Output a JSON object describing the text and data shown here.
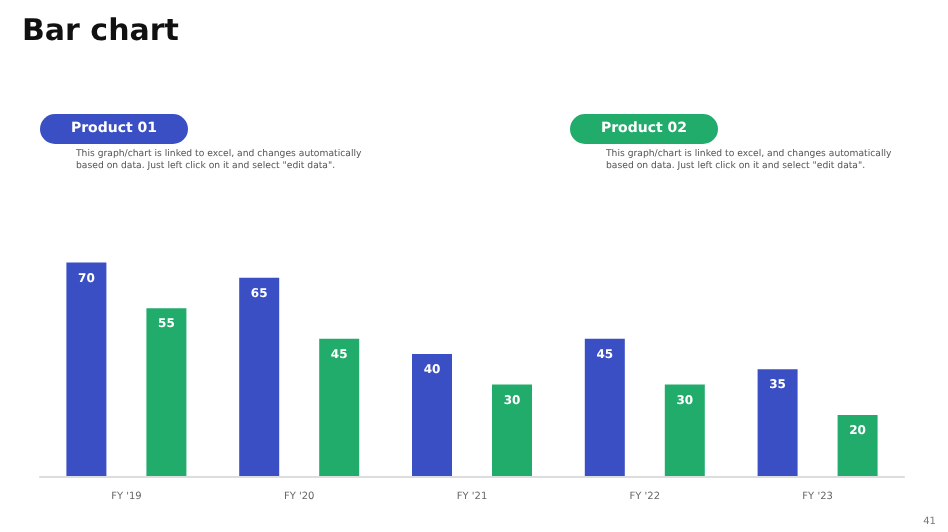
{
  "chart_data": {
    "type": "bar",
    "title": "Bar chart",
    "categories": [
      "FY '19",
      "FY '20",
      "FY '21",
      "FY '22",
      "FY '23"
    ],
    "series": [
      {
        "name": "Product 01",
        "color": "#3a4fc4",
        "values": [
          70,
          65,
          40,
          45,
          35
        ]
      },
      {
        "name": "Product 02",
        "color": "#22ac6c",
        "values": [
          55,
          45,
          30,
          30,
          20
        ]
      }
    ],
    "data_labels": true,
    "annotations": [
      "This graph/chart is linked to excel, and changes automatically based on data. Just left click on it and select \"edit data\".",
      "This graph/chart is linked to excel, and changes automatically based on data. Just left click on it and select \"edit data\".",
      "41"
    ]
  }
}
